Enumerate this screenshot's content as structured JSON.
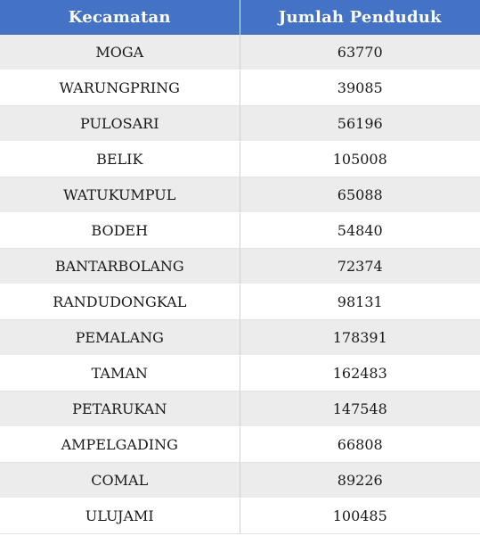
{
  "table": {
    "headers": [
      "Kecamatan",
      "Jumlah Penduduk"
    ],
    "rows": [
      [
        "MOGA",
        "63770"
      ],
      [
        "WARUNGPRING",
        "39085"
      ],
      [
        "PULOSARI",
        "56196"
      ],
      [
        "BELIK",
        "105008"
      ],
      [
        "WATUKUMPUL",
        "65088"
      ],
      [
        "BODEH",
        "54840"
      ],
      [
        "BANTARBOLANG",
        "72374"
      ],
      [
        "RANDUDONGKAL",
        "98131"
      ],
      [
        "PEMALANG",
        "178391"
      ],
      [
        "TAMAN",
        "162483"
      ],
      [
        "PETARUKAN",
        "147548"
      ],
      [
        "AMPELGADING",
        "66808"
      ],
      [
        "COMAL",
        "89226"
      ],
      [
        "ULUJAMI",
        "100485"
      ]
    ]
  },
  "colors": {
    "header_bg": "#4472c4",
    "header_text": "#ffffff",
    "row_alt_bg": "#ececec",
    "row_bg": "#ffffff"
  }
}
